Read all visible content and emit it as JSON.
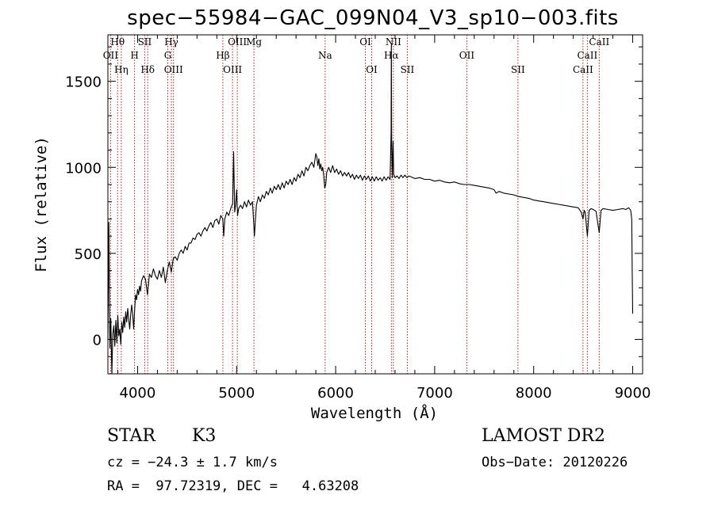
{
  "header": {
    "title": "spec−55984−GAC_099N04_V3_sp10−003.fits"
  },
  "info": {
    "class_label": "STAR",
    "subclass_label": "K3",
    "survey_label": "LAMOST DR2",
    "cz_text": "cz = −24.3 ± 1.7 km/s",
    "obs_date_text": "Obs−Date: 20120226",
    "coords_text": "RA =  97.72319, DEC =   4.63208"
  },
  "chart_data": {
    "type": "line",
    "xlabel": "Wavelength (Å)",
    "ylabel": "Flux (relative)",
    "xlim": [
      3700,
      9100
    ],
    "ylim": [
      -200,
      1770
    ],
    "x_ticks": [
      4000,
      5000,
      6000,
      7000,
      8000,
      9000
    ],
    "y_ticks": [
      0,
      500,
      1000,
      1500
    ],
    "line_color": "#000000",
    "marker_color": "#b22222",
    "series": [
      {
        "points": [
          [
            3700,
            0
          ],
          [
            3710,
            680
          ],
          [
            3720,
            -50
          ],
          [
            3730,
            120
          ],
          [
            3740,
            -200
          ],
          [
            3750,
            30
          ],
          [
            3760,
            80
          ],
          [
            3770,
            -40
          ],
          [
            3780,
            110
          ],
          [
            3790,
            -20
          ],
          [
            3800,
            140
          ],
          [
            3810,
            20
          ],
          [
            3820,
            60
          ],
          [
            3830,
            -30
          ],
          [
            3840,
            100
          ],
          [
            3850,
            40
          ],
          [
            3860,
            130
          ],
          [
            3870,
            70
          ],
          [
            3880,
            160
          ],
          [
            3890,
            100
          ],
          [
            3900,
            180
          ],
          [
            3910,
            120
          ],
          [
            3920,
            60
          ],
          [
            3930,
            140
          ],
          [
            3940,
            200
          ],
          [
            3950,
            150
          ],
          [
            3960,
            60
          ],
          [
            3970,
            170
          ],
          [
            3980,
            260
          ],
          [
            3990,
            230
          ],
          [
            4000,
            290
          ],
          [
            4010,
            260
          ],
          [
            4020,
            310
          ],
          [
            4030,
            280
          ],
          [
            4040,
            340
          ],
          [
            4060,
            370
          ],
          [
            4080,
            350
          ],
          [
            4100,
            260
          ],
          [
            4120,
            380
          ],
          [
            4140,
            360
          ],
          [
            4160,
            410
          ],
          [
            4180,
            370
          ],
          [
            4200,
            350
          ],
          [
            4220,
            400
          ],
          [
            4240,
            360
          ],
          [
            4260,
            420
          ],
          [
            4280,
            330
          ],
          [
            4300,
            400
          ],
          [
            4320,
            450
          ],
          [
            4340,
            390
          ],
          [
            4360,
            470
          ],
          [
            4380,
            480
          ],
          [
            4400,
            460
          ],
          [
            4420,
            500
          ],
          [
            4440,
            520
          ],
          [
            4460,
            500
          ],
          [
            4480,
            540
          ],
          [
            4500,
            520
          ],
          [
            4520,
            560
          ],
          [
            4540,
            560
          ],
          [
            4560,
            590
          ],
          [
            4580,
            580
          ],
          [
            4600,
            610
          ],
          [
            4620,
            620
          ],
          [
            4640,
            600
          ],
          [
            4660,
            630
          ],
          [
            4680,
            650
          ],
          [
            4700,
            630
          ],
          [
            4720,
            660
          ],
          [
            4740,
            680
          ],
          [
            4760,
            650
          ],
          [
            4780,
            690
          ],
          [
            4800,
            700
          ],
          [
            4820,
            670
          ],
          [
            4840,
            720
          ],
          [
            4860,
            700
          ],
          [
            4870,
            600
          ],
          [
            4880,
            700
          ],
          [
            4900,
            740
          ],
          [
            4920,
            720
          ],
          [
            4940,
            760
          ],
          [
            4960,
            790
          ],
          [
            4970,
            1090
          ],
          [
            4980,
            740
          ],
          [
            4990,
            780
          ],
          [
            5000,
            870
          ],
          [
            5010,
            720
          ],
          [
            5020,
            760
          ],
          [
            5040,
            780
          ],
          [
            5060,
            760
          ],
          [
            5080,
            800
          ],
          [
            5100,
            770
          ],
          [
            5120,
            810
          ],
          [
            5140,
            780
          ],
          [
            5160,
            800
          ],
          [
            5170,
            700
          ],
          [
            5180,
            600
          ],
          [
            5190,
            700
          ],
          [
            5200,
            780
          ],
          [
            5220,
            830
          ],
          [
            5240,
            800
          ],
          [
            5260,
            840
          ],
          [
            5280,
            820
          ],
          [
            5300,
            860
          ],
          [
            5320,
            840
          ],
          [
            5340,
            880
          ],
          [
            5360,
            850
          ],
          [
            5380,
            890
          ],
          [
            5400,
            870
          ],
          [
            5420,
            900
          ],
          [
            5440,
            870
          ],
          [
            5460,
            910
          ],
          [
            5480,
            880
          ],
          [
            5500,
            920
          ],
          [
            5520,
            900
          ],
          [
            5540,
            930
          ],
          [
            5560,
            900
          ],
          [
            5580,
            940
          ],
          [
            5600,
            920
          ],
          [
            5620,
            960
          ],
          [
            5640,
            940
          ],
          [
            5660,
            980
          ],
          [
            5680,
            950
          ],
          [
            5700,
            1000
          ],
          [
            5720,
            980
          ],
          [
            5740,
            1010
          ],
          [
            5760,
            1030
          ],
          [
            5780,
            1000
          ],
          [
            5800,
            1080
          ],
          [
            5810,
            1060
          ],
          [
            5820,
            1010
          ],
          [
            5830,
            1050
          ],
          [
            5840,
            990
          ],
          [
            5850,
            1020
          ],
          [
            5860,
            980
          ],
          [
            5870,
            1000
          ],
          [
            5880,
            950
          ],
          [
            5890,
            880
          ],
          [
            5900,
            900
          ],
          [
            5910,
            970
          ],
          [
            5930,
            1000
          ],
          [
            5950,
            970
          ],
          [
            5970,
            1010
          ],
          [
            5990,
            970
          ],
          [
            6010,
            990
          ],
          [
            6030,
            960
          ],
          [
            6050,
            980
          ],
          [
            6070,
            950
          ],
          [
            6090,
            970
          ],
          [
            6110,
            950
          ],
          [
            6130,
            970
          ],
          [
            6150,
            940
          ],
          [
            6170,
            960
          ],
          [
            6190,
            930
          ],
          [
            6210,
            955
          ],
          [
            6230,
            935
          ],
          [
            6250,
            955
          ],
          [
            6270,
            925
          ],
          [
            6290,
            950
          ],
          [
            6310,
            930
          ],
          [
            6330,
            950
          ],
          [
            6350,
            920
          ],
          [
            6370,
            945
          ],
          [
            6390,
            920
          ],
          [
            6410,
            945
          ],
          [
            6430,
            925
          ],
          [
            6450,
            940
          ],
          [
            6470,
            920
          ],
          [
            6490,
            945
          ],
          [
            6510,
            925
          ],
          [
            6530,
            945
          ],
          [
            6550,
            930
          ],
          [
            6560,
            1200
          ],
          [
            6563,
            1720
          ],
          [
            6566,
            1150
          ],
          [
            6572,
            940
          ],
          [
            6580,
            1150
          ],
          [
            6586,
            960
          ],
          [
            6600,
            940
          ],
          [
            6620,
            950
          ],
          [
            6640,
            935
          ],
          [
            6660,
            955
          ],
          [
            6680,
            940
          ],
          [
            6700,
            955
          ],
          [
            6720,
            940
          ],
          [
            6740,
            950
          ],
          [
            6760,
            945
          ],
          [
            6780,
            940
          ],
          [
            6800,
            935
          ],
          [
            6850,
            940
          ],
          [
            6900,
            930
          ],
          [
            6950,
            930
          ],
          [
            7000,
            920
          ],
          [
            7050,
            925
          ],
          [
            7100,
            915
          ],
          [
            7150,
            910
          ],
          [
            7200,
            915
          ],
          [
            7250,
            905
          ],
          [
            7300,
            900
          ],
          [
            7350,
            900
          ],
          [
            7400,
            895
          ],
          [
            7450,
            890
          ],
          [
            7500,
            885
          ],
          [
            7550,
            880
          ],
          [
            7600,
            870
          ],
          [
            7620,
            850
          ],
          [
            7650,
            860
          ],
          [
            7700,
            850
          ],
          [
            7750,
            845
          ],
          [
            7800,
            840
          ],
          [
            7850,
            830
          ],
          [
            7900,
            825
          ],
          [
            7950,
            820
          ],
          [
            8000,
            810
          ],
          [
            8050,
            805
          ],
          [
            8100,
            800
          ],
          [
            8150,
            795
          ],
          [
            8200,
            790
          ],
          [
            8250,
            785
          ],
          [
            8300,
            780
          ],
          [
            8350,
            775
          ],
          [
            8400,
            770
          ],
          [
            8450,
            765
          ],
          [
            8480,
            740
          ],
          [
            8498,
            700
          ],
          [
            8510,
            750
          ],
          [
            8520,
            740
          ],
          [
            8542,
            600
          ],
          [
            8560,
            750
          ],
          [
            8580,
            760
          ],
          [
            8600,
            755
          ],
          [
            8630,
            745
          ],
          [
            8662,
            620
          ],
          [
            8680,
            750
          ],
          [
            8700,
            760
          ],
          [
            8750,
            755
          ],
          [
            8800,
            750
          ],
          [
            8850,
            755
          ],
          [
            8900,
            760
          ],
          [
            8930,
            755
          ],
          [
            8960,
            765
          ],
          [
            8980,
            750
          ],
          [
            8990,
            700
          ],
          [
            8995,
            400
          ],
          [
            9000,
            150
          ]
        ]
      }
    ],
    "lines": [
      {
        "name": "Hθ",
        "wavelength": 3798
      },
      {
        "name": "OII",
        "wavelength": 3727
      },
      {
        "name": "Hη",
        "wavelength": 3835
      },
      {
        "name": "SII",
        "wavelength": 4072
      },
      {
        "name": "H",
        "wavelength": 3969
      },
      {
        "name": "Hδ",
        "wavelength": 4102
      },
      {
        "name": "Hγ",
        "wavelength": 4341
      },
      {
        "name": "G",
        "wavelength": 4305
      },
      {
        "name": "OIII",
        "wavelength": 4363
      },
      {
        "name": "OIII",
        "wavelength": 5007
      },
      {
        "name": "Hβ",
        "wavelength": 4861
      },
      {
        "name": "OIII",
        "wavelength": 4959
      },
      {
        "name": "Mg",
        "wavelength": 5175
      },
      {
        "name": "Na",
        "wavelength": 5894
      },
      {
        "name": "OI",
        "wavelength": 6364
      },
      {
        "name": "OI",
        "wavelength": 6300
      },
      {
        "name": "Hα",
        "wavelength": 6563
      },
      {
        "name": "SII",
        "wavelength": 6724
      },
      {
        "name": "NII",
        "wavelength": 6583
      },
      {
        "name": "OII",
        "wavelength": 7325
      },
      {
        "name": "SII",
        "wavelength": 7841
      },
      {
        "name": "CaII",
        "wavelength": 8662
      },
      {
        "name": "CaII",
        "wavelength": 8542
      },
      {
        "name": "CaII",
        "wavelength": 8498
      }
    ]
  }
}
